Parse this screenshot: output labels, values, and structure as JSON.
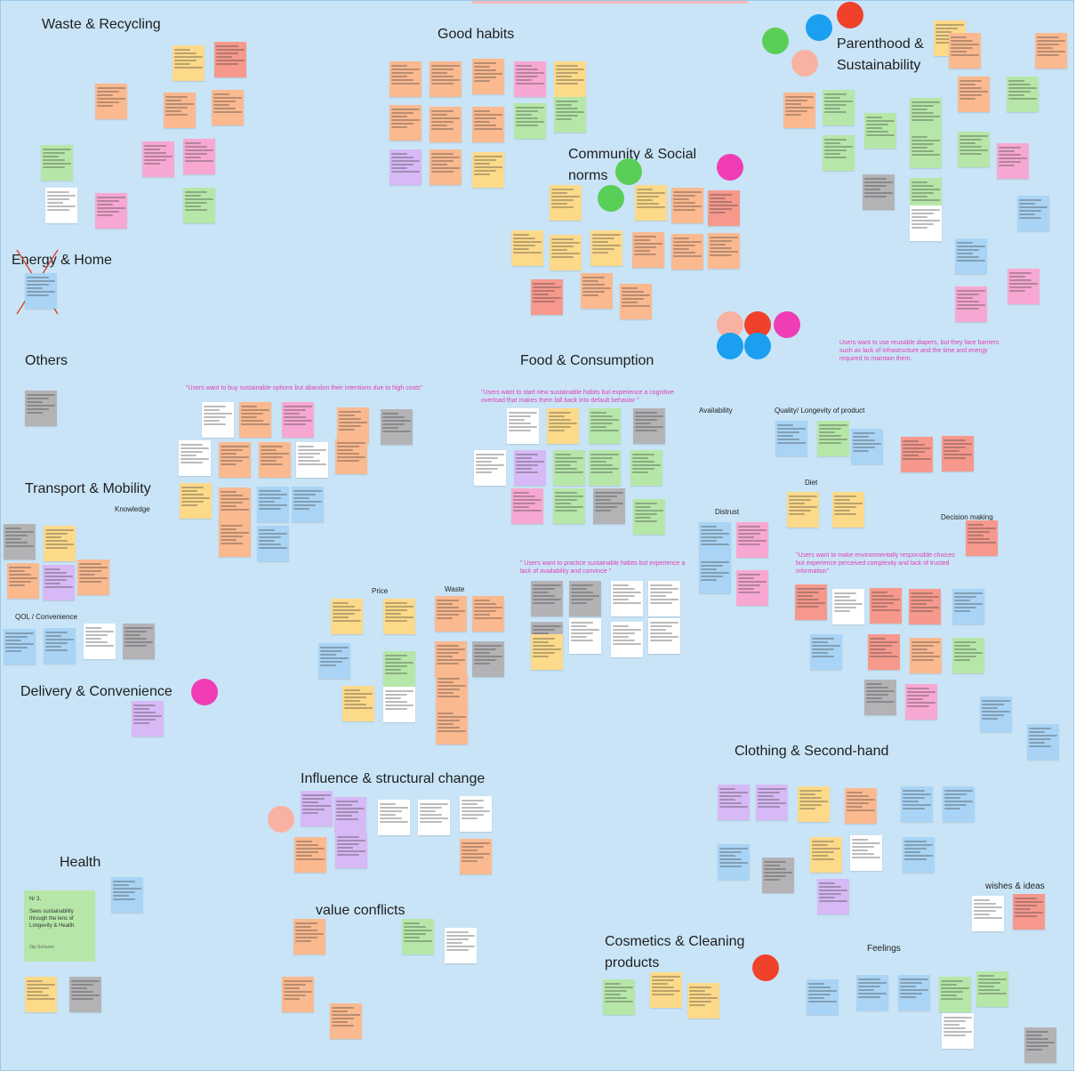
{
  "board": {
    "background": "#c9e4f7",
    "categories": [
      {
        "key": "waste",
        "text": "Waste & Recycling"
      },
      {
        "key": "good",
        "text": "Good habits"
      },
      {
        "key": "parent",
        "text": "Parenthood & Sustainability"
      },
      {
        "key": "community",
        "text": "Community & Social norms"
      },
      {
        "key": "energy",
        "text": "Energy & Home"
      },
      {
        "key": "others",
        "text": "Others"
      },
      {
        "key": "food",
        "text": "Food & Consumption"
      },
      {
        "key": "transport",
        "text": "Transport & Mobility"
      },
      {
        "key": "delivery",
        "text": "Delivery & Convenience"
      },
      {
        "key": "influence",
        "text": "Influence & structural change"
      },
      {
        "key": "clothing",
        "text": "Clothing & Second-hand"
      },
      {
        "key": "health",
        "text": "Health"
      },
      {
        "key": "value",
        "text": "value conflicts"
      },
      {
        "key": "cosmetics",
        "text": "Cosmetics & Cleaning products"
      }
    ],
    "subheadings": [
      {
        "key": "knowledge",
        "text": "Knowledge"
      },
      {
        "key": "availability",
        "text": "Availability"
      },
      {
        "key": "quality",
        "text": "Quality/ Longevity of product"
      },
      {
        "key": "diet",
        "text": "Diet"
      },
      {
        "key": "distrust",
        "text": "Distrust"
      },
      {
        "key": "decision",
        "text": "Decision making"
      },
      {
        "key": "price",
        "text": "Price"
      },
      {
        "key": "waste2",
        "text": "Waste"
      },
      {
        "key": "qol",
        "text": "QOL / Convenience"
      },
      {
        "key": "wishes",
        "text": "wishes & ideas"
      },
      {
        "key": "feelings",
        "text": "Feelings"
      }
    ],
    "quotes": [
      {
        "key": "q1",
        "text": "\"Users want to buy sustainable options but abandon their intentions due to high costs\""
      },
      {
        "key": "q2",
        "text": "\"Users want to start new sustainable habits but experience a cognitive overload that makes them fall back into default behavior \""
      },
      {
        "key": "q3",
        "text": "\" Users want to practice sustainable habits but experience a lack of availability and convince \""
      },
      {
        "key": "q4",
        "text": "\"Users want to make environmentally responsible choices but experience perceived complexity and lack of trusted information\""
      },
      {
        "key": "q5",
        "text": "Users want to use reusable diapers, but they face barriers such as lack of infrastructure and the time and energy required to maintain them."
      }
    ],
    "featured_note": {
      "id": "Nr 3,",
      "text": "Sees sustainability through the lens of Longevity & Health.",
      "author": "Oju Scharen"
    },
    "colors": {
      "yellow": "#fdda8a",
      "orange": "#fbb98f",
      "red": "#f6998c",
      "pink": "#f7a8d2",
      "green": "#b6e7a8",
      "purple": "#d7b9f5",
      "blue": "#a9d4f5",
      "gray": "#b3b3b6",
      "white": "#ffffff",
      "dot_red": "#f0412a",
      "dot_pink": "#f03db4",
      "dot_green": "#59cf58",
      "dot_blue": "#1b9ff0",
      "dot_salmon": "#f9b1a1"
    }
  }
}
